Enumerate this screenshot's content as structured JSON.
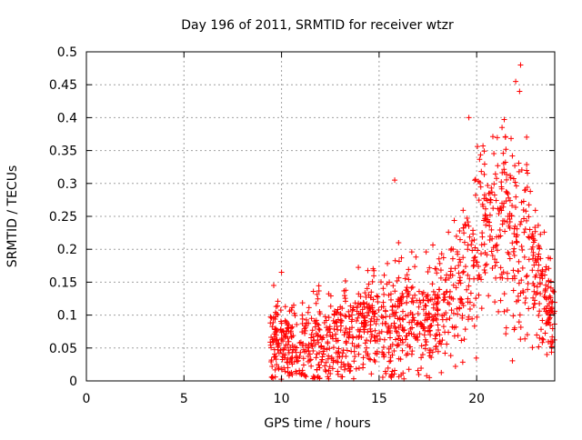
{
  "chart_data": {
    "type": "scatter",
    "title": "Day 196 of 2011, SRMTID for receiver wtzr",
    "xlabel": "GPS time / hours",
    "ylabel": "SRMTID / TECUs",
    "xlim": [
      0,
      24
    ],
    "ylim": [
      0,
      0.5
    ],
    "grid": true,
    "marker": "+",
    "color": "#ff0000",
    "x_ticks": [
      0,
      5,
      10,
      15,
      20
    ],
    "x_tick_labels": [
      "0",
      "5",
      "10",
      "15",
      "20"
    ],
    "y_ticks": [
      0,
      0.05,
      0.1,
      0.15,
      0.2,
      0.25,
      0.3,
      0.35,
      0.4,
      0.45,
      0.5
    ],
    "y_tick_labels": [
      "0",
      "0.05",
      "0.1",
      "0.15",
      "0.2",
      "0.25",
      "0.3",
      "0.35",
      "0.4",
      "0.45",
      "0.5"
    ],
    "series": [
      {
        "name": "SRMTID",
        "envelope": [
          {
            "x": 9.5,
            "mean": 0.06,
            "spread": 0.045
          },
          {
            "x": 10.5,
            "mean": 0.06,
            "spread": 0.05
          },
          {
            "x": 11.5,
            "mean": 0.05,
            "spread": 0.05
          },
          {
            "x": 12.5,
            "mean": 0.06,
            "spread": 0.05
          },
          {
            "x": 13.5,
            "mean": 0.07,
            "spread": 0.05
          },
          {
            "x": 14.5,
            "mean": 0.09,
            "spread": 0.05
          },
          {
            "x": 15.5,
            "mean": 0.09,
            "spread": 0.06
          },
          {
            "x": 16.5,
            "mean": 0.09,
            "spread": 0.06
          },
          {
            "x": 17.5,
            "mean": 0.1,
            "spread": 0.06
          },
          {
            "x": 18.5,
            "mean": 0.12,
            "spread": 0.06
          },
          {
            "x": 19.5,
            "mean": 0.17,
            "spread": 0.09
          },
          {
            "x": 20.5,
            "mean": 0.24,
            "spread": 0.09
          },
          {
            "x": 21.5,
            "mean": 0.25,
            "spread": 0.11
          },
          {
            "x": 22.5,
            "mean": 0.21,
            "spread": 0.12
          },
          {
            "x": 23.5,
            "mean": 0.12,
            "spread": 0.06
          },
          {
            "x": 24.0,
            "mean": 0.09,
            "spread": 0.04
          }
        ],
        "x_range": [
          9.4,
          24.0
        ],
        "point_count": 1300,
        "notable_points": [
          {
            "x": 15.8,
            "y": 0.305
          },
          {
            "x": 22.25,
            "y": 0.48
          },
          {
            "x": 22.0,
            "y": 0.455
          },
          {
            "x": 22.2,
            "y": 0.44
          },
          {
            "x": 19.6,
            "y": 0.4
          },
          {
            "x": 21.3,
            "y": 0.385
          },
          {
            "x": 9.6,
            "y": 0.145
          },
          {
            "x": 10.0,
            "y": 0.165
          },
          {
            "x": 16.0,
            "y": 0.21
          },
          {
            "x": 23.6,
            "y": 0.04
          }
        ]
      }
    ]
  }
}
